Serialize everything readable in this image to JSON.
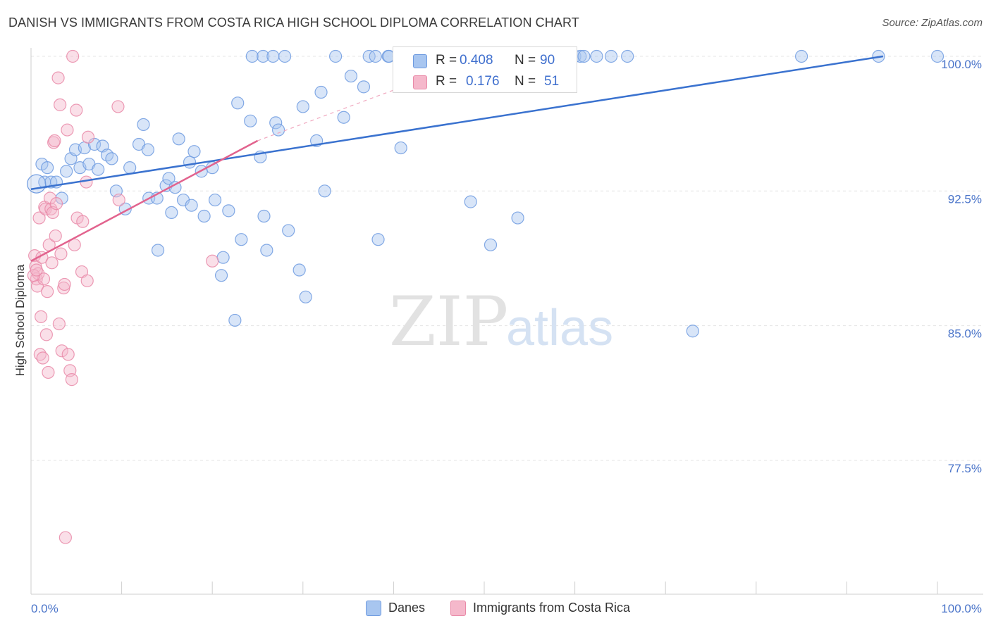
{
  "title": "DANISH VS IMMIGRANTS FROM COSTA RICA HIGH SCHOOL DIPLOMA CORRELATION CHART",
  "source": "Source: ZipAtlas.com",
  "watermark": {
    "zip": "ZIP",
    "atlas": "atlas"
  },
  "legend": {
    "rows": [
      {
        "r_label": "R =",
        "r_value": "0.408",
        "n_label": "N =",
        "n_value": "90",
        "color": "#a8c6f0"
      },
      {
        "r_label": "R =",
        "r_value": "0.176",
        "n_label": "N =",
        "n_value": "51",
        "color": "#f5b8cb"
      }
    ]
  },
  "bottom_legend": [
    {
      "label": "Danes",
      "color": "#a8c6f0"
    },
    {
      "label": "Immigrants from Costa Rica",
      "color": "#f5b8cb"
    }
  ],
  "chart_data": {
    "type": "scatter",
    "title": "DANISH VS IMMIGRANTS FROM COSTA RICA HIGH SCHOOL DIPLOMA CORRELATION CHART",
    "xlabel": "",
    "ylabel": "High School Diploma",
    "xlim": [
      0,
      100
    ],
    "ylim": [
      70.8,
      101
    ],
    "x_tick_labels": [
      "0.0%",
      "100.0%"
    ],
    "y_tick_labels": [
      "100.0%",
      "92.5%",
      "85.0%",
      "77.5%"
    ],
    "y_ticks": [
      100.0,
      92.5,
      85.0,
      77.5
    ],
    "grid": true,
    "series": [
      {
        "name": "Danes",
        "color": "#6f9be0",
        "fill": "#a8c6f0",
        "trend": {
          "x": [
            0,
            94
          ],
          "y": [
            92.6,
            100.0
          ]
        },
        "points": [
          [
            1.2,
            94.0
          ],
          [
            1.5,
            93.0
          ],
          [
            1.8,
            93.8
          ],
          [
            2.2,
            93.0
          ],
          [
            2.8,
            93.0
          ],
          [
            3.4,
            92.1
          ],
          [
            3.9,
            93.6
          ],
          [
            4.4,
            94.3
          ],
          [
            4.9,
            94.8
          ],
          [
            5.4,
            93.8
          ],
          [
            5.9,
            94.9
          ],
          [
            6.4,
            94.0
          ],
          [
            7.0,
            95.1
          ],
          [
            7.4,
            93.7
          ],
          [
            7.9,
            95.0
          ],
          [
            8.4,
            94.5
          ],
          [
            8.9,
            94.3
          ],
          [
            9.4,
            92.5
          ],
          [
            10.4,
            91.5
          ],
          [
            10.9,
            93.8
          ],
          [
            11.9,
            95.1
          ],
          [
            12.4,
            96.2
          ],
          [
            12.9,
            94.8
          ],
          [
            13.0,
            92.1
          ],
          [
            13.9,
            92.1
          ],
          [
            14.0,
            89.2
          ],
          [
            14.9,
            92.8
          ],
          [
            15.2,
            93.2
          ],
          [
            15.5,
            91.3
          ],
          [
            15.9,
            92.7
          ],
          [
            16.3,
            95.4
          ],
          [
            16.8,
            92.0
          ],
          [
            17.5,
            94.1
          ],
          [
            17.7,
            91.7
          ],
          [
            18.0,
            94.7
          ],
          [
            18.8,
            93.6
          ],
          [
            19.1,
            91.1
          ],
          [
            20.0,
            93.8
          ],
          [
            20.3,
            92.0
          ],
          [
            21.0,
            87.8
          ],
          [
            21.2,
            88.8
          ],
          [
            21.8,
            91.4
          ],
          [
            22.5,
            85.3
          ],
          [
            22.8,
            97.4
          ],
          [
            23.2,
            89.8
          ],
          [
            24.2,
            96.4
          ],
          [
            24.4,
            100.0
          ],
          [
            25.3,
            94.4
          ],
          [
            25.6,
            100.0
          ],
          [
            25.7,
            91.1
          ],
          [
            26.0,
            89.2
          ],
          [
            26.7,
            100.0
          ],
          [
            27.0,
            96.3
          ],
          [
            27.3,
            95.9
          ],
          [
            28.0,
            100.0
          ],
          [
            28.4,
            90.3
          ],
          [
            29.6,
            88.1
          ],
          [
            30.0,
            97.2
          ],
          [
            30.3,
            86.6
          ],
          [
            31.5,
            95.3
          ],
          [
            32.0,
            98.0
          ],
          [
            32.4,
            92.5
          ],
          [
            33.6,
            100.0
          ],
          [
            34.5,
            96.6
          ],
          [
            35.3,
            98.9
          ],
          [
            36.7,
            98.3
          ],
          [
            37.3,
            100.0
          ],
          [
            38.0,
            100.0
          ],
          [
            38.3,
            89.8
          ],
          [
            39.4,
            100.0
          ],
          [
            39.5,
            100.0
          ],
          [
            40.8,
            94.9
          ],
          [
            47.5,
            100.0
          ],
          [
            47.7,
            100.0
          ],
          [
            47.9,
            100.0
          ],
          [
            48.5,
            91.9
          ],
          [
            49.5,
            100.0
          ],
          [
            50.7,
            89.5
          ],
          [
            53.7,
            91.0
          ],
          [
            58.3,
            100.0
          ],
          [
            60.0,
            100.0
          ],
          [
            60.6,
            100.0
          ],
          [
            61.0,
            100.0
          ],
          [
            62.4,
            100.0
          ],
          [
            64.0,
            100.0
          ],
          [
            65.8,
            100.0
          ],
          [
            73.0,
            84.7
          ],
          [
            85.0,
            100.0
          ],
          [
            93.5,
            100.0
          ],
          [
            100.0,
            100.0
          ]
        ]
      },
      {
        "name": "Immigrants from Costa Rica",
        "color": "#e98aa8",
        "fill": "#f5b8cb",
        "trend": {
          "x": [
            0,
            25
          ],
          "y": [
            88.6,
            95.3
          ]
        },
        "trend_extended": {
          "x": [
            25,
            50
          ],
          "y": [
            95.3,
            100.0
          ]
        },
        "points": [
          [
            0.4,
            88.9
          ],
          [
            0.5,
            88.3
          ],
          [
            0.6,
            87.6
          ],
          [
            0.7,
            87.2
          ],
          [
            0.8,
            87.9
          ],
          [
            0.9,
            91.0
          ],
          [
            1.0,
            83.4
          ],
          [
            1.1,
            85.5
          ],
          [
            1.2,
            88.8
          ],
          [
            1.3,
            83.2
          ],
          [
            1.4,
            87.6
          ],
          [
            1.5,
            91.6
          ],
          [
            1.6,
            91.5
          ],
          [
            1.7,
            84.5
          ],
          [
            1.8,
            86.9
          ],
          [
            1.9,
            82.4
          ],
          [
            2.0,
            89.5
          ],
          [
            2.1,
            92.1
          ],
          [
            2.2,
            91.5
          ],
          [
            2.3,
            88.5
          ],
          [
            2.4,
            91.3
          ],
          [
            2.5,
            95.2
          ],
          [
            2.6,
            95.3
          ],
          [
            2.7,
            90.0
          ],
          [
            2.8,
            91.8
          ],
          [
            3.0,
            98.8
          ],
          [
            3.1,
            85.1
          ],
          [
            3.2,
            97.3
          ],
          [
            3.3,
            89.0
          ],
          [
            3.4,
            83.6
          ],
          [
            3.6,
            87.1
          ],
          [
            3.7,
            87.3
          ],
          [
            3.8,
            73.2
          ],
          [
            4.0,
            95.9
          ],
          [
            4.1,
            83.4
          ],
          [
            4.3,
            82.5
          ],
          [
            4.5,
            82.0
          ],
          [
            4.6,
            100.0
          ],
          [
            4.8,
            89.5
          ],
          [
            5.0,
            97.0
          ],
          [
            5.1,
            91.0
          ],
          [
            5.6,
            88.0
          ],
          [
            5.7,
            90.8
          ],
          [
            6.1,
            93.0
          ],
          [
            6.2,
            87.5
          ],
          [
            6.3,
            95.5
          ],
          [
            9.6,
            97.2
          ],
          [
            9.7,
            92.0
          ],
          [
            20.0,
            88.6
          ],
          [
            0.3,
            87.8
          ],
          [
            0.6,
            88.1
          ]
        ]
      }
    ]
  }
}
